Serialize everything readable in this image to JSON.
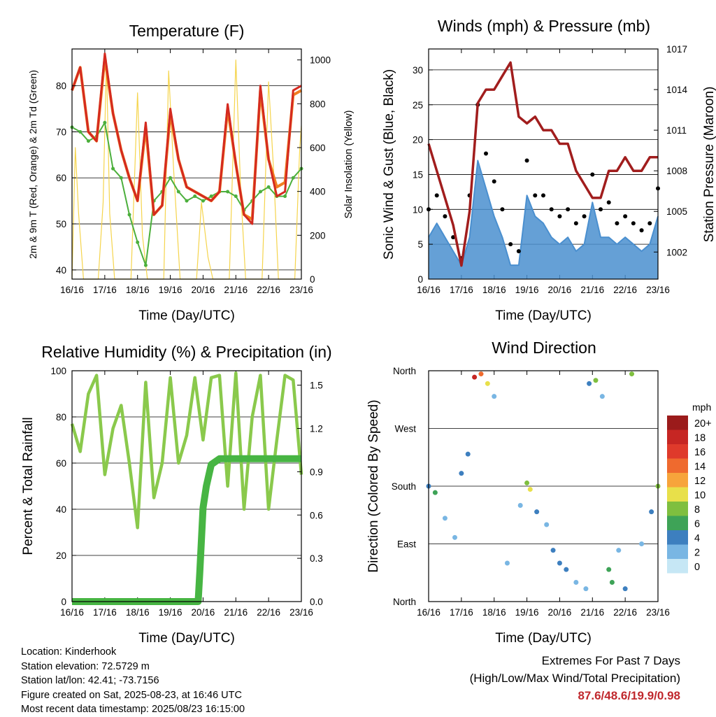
{
  "x_ticks": [
    "16/16",
    "17/16",
    "18/16",
    "19/16",
    "20/16",
    "21/16",
    "22/16",
    "23/16"
  ],
  "colors": {
    "t2m": "#d42a20",
    "t9m": "#f07f22",
    "td": "#4caf3c",
    "solar": "#f5d44c",
    "wind": "#4a8fcf",
    "gust": "#000000",
    "pressure": "#a11d1d",
    "rh": "#8ac94c",
    "precip": "#47b543"
  },
  "speed_legend": {
    "unit": "mph",
    "levels": [
      {
        "label": "20+",
        "color": "#9b1b1b"
      },
      {
        "label": "18",
        "color": "#c62623"
      },
      {
        "label": "16",
        "color": "#df3a2b"
      },
      {
        "label": "14",
        "color": "#ef6a2e"
      },
      {
        "label": "12",
        "color": "#f7a43b"
      },
      {
        "label": "10",
        "color": "#e8e04a"
      },
      {
        "label": "8",
        "color": "#7fbf3f"
      },
      {
        "label": "6",
        "color": "#3ea357"
      },
      {
        "label": "4",
        "color": "#3d7fbf"
      },
      {
        "label": "2",
        "color": "#79b6e3"
      },
      {
        "label": "0",
        "color": "#c6e7f5"
      }
    ]
  },
  "chart_data": [
    {
      "type": "line",
      "title": "Temperature (F)",
      "xlabel": "Time (Day/UTC)",
      "ylabel": "2m & 9m T (Red, Orange) & 2m Td (Green)",
      "ylabel_right": "Solar Insolation (Yellow)",
      "ylim": [
        38,
        88
      ],
      "yticks": [
        40,
        50,
        60,
        70,
        80
      ],
      "ylim_right": [
        0,
        1050
      ],
      "yticks_right": [
        0,
        200,
        400,
        600,
        800,
        1000
      ],
      "x": [
        0,
        0.25,
        0.5,
        0.75,
        1,
        1.25,
        1.5,
        1.75,
        2,
        2.25,
        2.5,
        2.75,
        3,
        3.25,
        3.5,
        3.75,
        4,
        4.25,
        4.5,
        4.75,
        5,
        5.25,
        5.5,
        5.75,
        6,
        6.25,
        6.5,
        6.75,
        7
      ],
      "series": [
        {
          "name": "2m T",
          "values": [
            79,
            84,
            70,
            68,
            87,
            74,
            66,
            60,
            55,
            72,
            52,
            54,
            75,
            64,
            58,
            57,
            56,
            55,
            57,
            76,
            63,
            52,
            50,
            80,
            64,
            56,
            57,
            79,
            80
          ]
        },
        {
          "name": "9m T",
          "values": [
            79,
            84,
            70,
            68,
            86,
            74,
            66,
            60,
            55,
            71,
            52,
            54,
            74,
            64,
            58,
            57,
            56,
            55,
            57,
            75,
            63,
            52,
            51,
            79,
            64,
            58,
            59,
            78,
            79
          ]
        },
        {
          "name": "2m Td",
          "values": [
            71,
            70,
            68,
            69,
            72,
            62,
            60,
            52,
            46,
            41,
            55,
            57,
            60,
            57,
            55,
            56,
            55,
            56,
            57,
            57,
            56,
            53,
            55,
            57,
            58,
            56,
            56,
            60,
            62
          ]
        },
        {
          "name": "Solar",
          "axis": "right",
          "points": [
            [
              0,
              0
            ],
            [
              0.1,
              600
            ],
            [
              0.2,
              300
            ],
            [
              0.35,
              0
            ],
            [
              0.8,
              0
            ],
            [
              0.95,
              350
            ],
            [
              1.05,
              1000
            ],
            [
              1.15,
              300
            ],
            [
              1.3,
              0
            ],
            [
              1.8,
              0
            ],
            [
              2.0,
              850
            ],
            [
              2.15,
              200
            ],
            [
              2.3,
              0
            ],
            [
              2.8,
              0
            ],
            [
              2.95,
              950
            ],
            [
              3.1,
              500
            ],
            [
              3.3,
              0
            ],
            [
              3.8,
              0
            ],
            [
              3.95,
              350
            ],
            [
              4.15,
              100
            ],
            [
              4.3,
              0
            ],
            [
              4.8,
              0
            ],
            [
              5.0,
              1000
            ],
            [
              5.15,
              400
            ],
            [
              5.3,
              0
            ],
            [
              5.8,
              0
            ],
            [
              6.0,
              900
            ],
            [
              6.15,
              500
            ],
            [
              6.3,
              0
            ],
            [
              6.8,
              0
            ],
            [
              6.95,
              600
            ],
            [
              7.0,
              700
            ]
          ]
        }
      ]
    },
    {
      "type": "line",
      "title": "Winds (mph) & Pressure (mb)",
      "xlabel": "Time (Day/UTC)",
      "ylabel": "Sonic Wind & Gust (Blue, Black)",
      "ylabel_right": "Station Pressure (Maroon)",
      "ylim": [
        0,
        33
      ],
      "yticks": [
        0,
        5,
        10,
        15,
        20,
        25,
        30
      ],
      "ylim_right": [
        1000,
        1017
      ],
      "yticks_right": [
        1002,
        1005,
        1008,
        1011,
        1014,
        1017
      ],
      "x": [
        0,
        0.25,
        0.5,
        0.75,
        1,
        1.25,
        1.5,
        1.75,
        2,
        2.25,
        2.5,
        2.75,
        3,
        3.25,
        3.5,
        3.75,
        4,
        4.25,
        4.5,
        4.75,
        5,
        5.25,
        5.5,
        5.75,
        6,
        6.25,
        6.5,
        6.75,
        7
      ],
      "series": [
        {
          "name": "Wind",
          "values": [
            6,
            8,
            6,
            4,
            2,
            6,
            17,
            13,
            9,
            6,
            2,
            2,
            12,
            9,
            8,
            6,
            5,
            6,
            4,
            5,
            11,
            6,
            6,
            5,
            6,
            5,
            4,
            5,
            9
          ]
        },
        {
          "name": "Gust",
          "values": [
            10,
            12,
            9,
            6,
            3,
            12,
            25,
            18,
            14,
            10,
            5,
            4,
            17,
            12,
            12,
            10,
            9,
            10,
            8,
            9,
            15,
            10,
            11,
            8,
            9,
            8,
            7,
            8,
            13
          ]
        },
        {
          "name": "Pressure",
          "axis": "right",
          "values": [
            1010,
            1008,
            1006,
            1004,
            1001,
            1005,
            1013,
            1014,
            1014,
            1015,
            1016,
            1012,
            1011.5,
            1012,
            1011,
            1011,
            1010,
            1010,
            1008,
            1007,
            1006,
            1006,
            1008,
            1008,
            1009,
            1008,
            1008,
            1009,
            1009
          ]
        }
      ]
    },
    {
      "type": "line",
      "title": "Relative Humidity (%) & Precipitation (in)",
      "xlabel": "Time (Day/UTC)",
      "ylabel": "Percent & Total Rainfall",
      "ylim": [
        0,
        100
      ],
      "yticks": [
        0,
        20,
        40,
        60,
        80,
        100
      ],
      "ylim_right": [
        0,
        1.6
      ],
      "yticks_right": [
        "0.0",
        "0.3",
        "0.6",
        "0.9",
        "1.2",
        "1.5"
      ],
      "x": [
        0,
        0.25,
        0.5,
        0.75,
        1,
        1.25,
        1.5,
        1.75,
        2,
        2.25,
        2.5,
        2.75,
        3,
        3.25,
        3.5,
        3.75,
        4,
        4.25,
        4.5,
        4.75,
        5,
        5.25,
        5.5,
        5.75,
        6,
        6.25,
        6.5,
        6.75,
        7
      ],
      "series": [
        {
          "name": "RH",
          "values": [
            77,
            65,
            90,
            98,
            55,
            75,
            85,
            60,
            32,
            95,
            45,
            60,
            97,
            60,
            72,
            97,
            70,
            97,
            98,
            50,
            99,
            40,
            80,
            98,
            40,
            70,
            98,
            96,
            55
          ]
        },
        {
          "name": "Precip",
          "axis": "right",
          "points": [
            [
              0,
              0
            ],
            [
              3.85,
              0
            ],
            [
              3.9,
              0.2
            ],
            [
              4.0,
              0.65
            ],
            [
              4.1,
              0.8
            ],
            [
              4.25,
              0.95
            ],
            [
              4.5,
              0.99
            ],
            [
              7,
              0.99
            ]
          ]
        }
      ]
    },
    {
      "type": "scatter",
      "title": "Wind Direction",
      "xlabel": "Time (Day/UTC)",
      "ylabel": "Direction (Colored By Speed)",
      "ytick_labels": [
        "North",
        "East",
        "South",
        "West",
        "North"
      ],
      "ylim": [
        0,
        360
      ],
      "points": [
        [
          0,
          180,
          5
        ],
        [
          0.2,
          170,
          6
        ],
        [
          0.5,
          130,
          3
        ],
        [
          0.8,
          100,
          2
        ],
        [
          1.0,
          200,
          5
        ],
        [
          1.2,
          230,
          4
        ],
        [
          1.4,
          350,
          18
        ],
        [
          1.6,
          355,
          14
        ],
        [
          1.8,
          340,
          10
        ],
        [
          2.0,
          320,
          3
        ],
        [
          2.4,
          60,
          2
        ],
        [
          2.8,
          150,
          3
        ],
        [
          3.0,
          185,
          9
        ],
        [
          3.1,
          175,
          11
        ],
        [
          3.3,
          140,
          5
        ],
        [
          3.6,
          120,
          3
        ],
        [
          3.8,
          80,
          4
        ],
        [
          4.0,
          60,
          5
        ],
        [
          4.2,
          50,
          4
        ],
        [
          4.5,
          30,
          3
        ],
        [
          4.8,
          20,
          3
        ],
        [
          4.9,
          340,
          4
        ],
        [
          5.1,
          345,
          9
        ],
        [
          5.3,
          320,
          2
        ],
        [
          5.5,
          50,
          6
        ],
        [
          5.6,
          30,
          7
        ],
        [
          5.8,
          80,
          3
        ],
        [
          6.0,
          20,
          5
        ],
        [
          6.2,
          355,
          8
        ],
        [
          6.5,
          90,
          3
        ],
        [
          6.8,
          140,
          4
        ],
        [
          7.0,
          180,
          9
        ]
      ]
    }
  ],
  "info": {
    "location": "Location: Kinderhook",
    "elevation": "Station elevation: 72.5729 m",
    "latlon": "Station lat/lon: 42.41; -73.7156",
    "created": "Figure created on Sat, 2025-08-23, at 16:46 UTC",
    "recent": "Most recent data timestamp: 2025/08/23 16:15:00"
  },
  "extremes": {
    "title": "Extremes For Past 7 Days",
    "subtitle": "(High/Low/Max Wind/Total Precipitation)",
    "values": "87.6/48.6/19.9/0.98"
  }
}
